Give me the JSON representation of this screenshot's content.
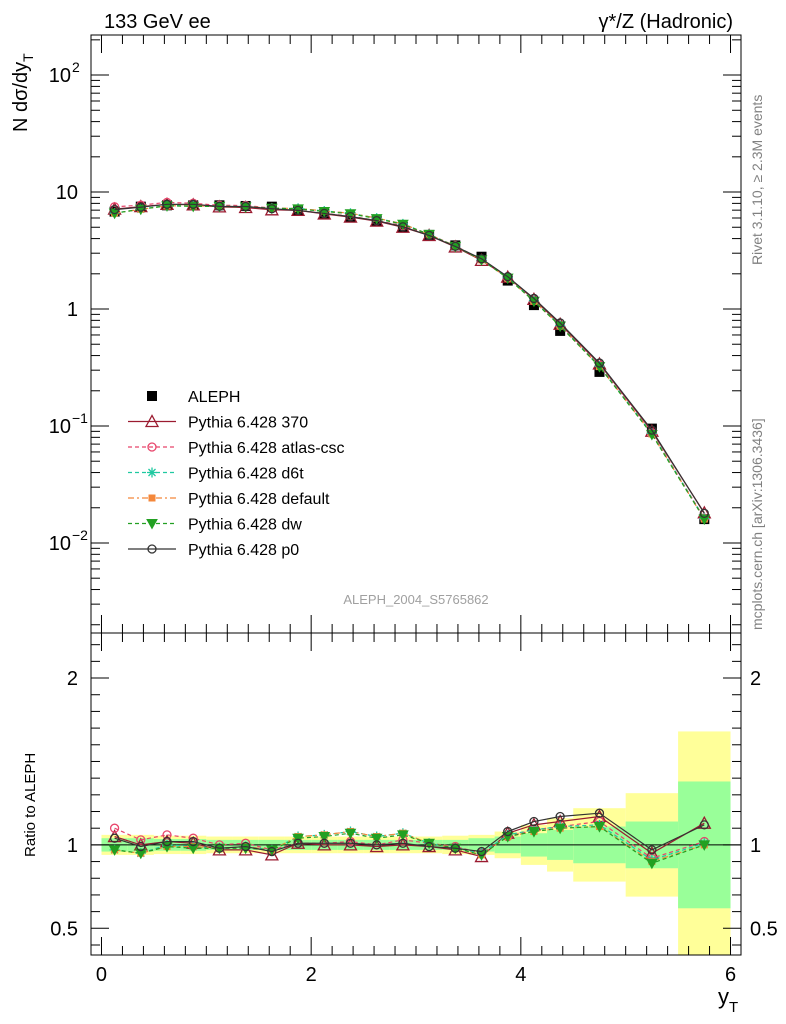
{
  "header": {
    "left": "133 GeV ee",
    "right": "γ*/Z (Hadronic)"
  },
  "side_labels": {
    "rivet": "Rivet 3.1.10, ≥ 2.3M events",
    "mcplots": "mcplots.cern.ch [arXiv:1306.3436]"
  },
  "watermark": "ALEPH_2004_S5765862",
  "chart_data": {
    "type": "line",
    "xlabel": "y",
    "xlabel_sub": "T",
    "ylabel_main": "N dσ/dy",
    "ylabel_main_sub": "T",
    "ylabel_ratio": "Ratio to ALEPH",
    "xlim": [
      -0.1,
      6.1
    ],
    "ylim_main": [
      0.0017,
      220
    ],
    "ylim_ratio": [
      0.34,
      2.27
    ],
    "log_y_main": true,
    "x_ticks": [
      "0",
      "2",
      "4",
      "6"
    ],
    "x_tick_values": [
      0,
      2,
      4,
      6
    ],
    "main_y_ticks": [
      {
        "v": 100,
        "base": "10",
        "exp": "2"
      },
      {
        "v": 10,
        "base": "10",
        "exp": ""
      },
      {
        "v": 1,
        "base": "1",
        "exp": ""
      },
      {
        "v": 0.1,
        "base": "10",
        "exp": "−1"
      },
      {
        "v": 0.01,
        "base": "10",
        "exp": "−2"
      }
    ],
    "ratio_y_ticks": [
      "0.5",
      "1",
      "2"
    ],
    "ratio_y_tick_values": [
      0.5,
      1,
      2
    ],
    "x": [
      0.125,
      0.375,
      0.625,
      0.875,
      1.125,
      1.375,
      1.625,
      1.875,
      2.125,
      2.375,
      2.625,
      2.875,
      3.125,
      3.375,
      3.625,
      3.875,
      4.125,
      4.375,
      4.75,
      5.25,
      5.75
    ],
    "bin_edges": [
      0,
      0.25,
      0.5,
      0.75,
      1.0,
      1.25,
      1.5,
      1.75,
      2.0,
      2.25,
      2.5,
      2.75,
      3.0,
      3.25,
      3.5,
      3.75,
      4.0,
      4.25,
      4.5,
      5.0,
      5.5,
      6.0
    ],
    "data": {
      "name": "ALEPH",
      "values": [
        6.8,
        7.5,
        7.7,
        7.7,
        7.7,
        7.6,
        7.5,
        6.9,
        6.5,
        6.1,
        5.7,
        5.0,
        4.3,
        3.5,
        2.8,
        1.75,
        1.08,
        0.65,
        0.29,
        0.095,
        0.016
      ]
    },
    "band_inner": [
      0.04,
      0.04,
      0.035,
      0.035,
      0.03,
      0.03,
      0.03,
      0.03,
      0.03,
      0.03,
      0.03,
      0.03,
      0.03,
      0.03,
      0.04,
      0.05,
      0.07,
      0.09,
      0.11,
      0.14,
      0.38
    ],
    "band_outer": [
      0.06,
      0.06,
      0.055,
      0.055,
      0.05,
      0.05,
      0.05,
      0.05,
      0.05,
      0.05,
      0.05,
      0.05,
      0.05,
      0.055,
      0.06,
      0.08,
      0.12,
      0.16,
      0.22,
      0.31,
      0.68
    ],
    "series": [
      {
        "name": "Pythia 6.428 370",
        "color": "#9b1b30",
        "dash": "",
        "marker": "triangle",
        "ratio": [
          1.05,
          1.0,
          1.02,
          1.01,
          0.97,
          0.97,
          0.94,
          1.01,
          1.0,
          1.0,
          0.99,
          1.0,
          0.99,
          0.97,
          0.93,
          1.07,
          1.12,
          1.14,
          1.17,
          0.95,
          1.13
        ]
      },
      {
        "name": "Pythia 6.428 atlas-csc",
        "color": "#e8456b",
        "dash": "4,3",
        "marker": "circle-open",
        "ratio": [
          1.1,
          1.03,
          1.06,
          1.04,
          1.0,
          1.01,
          0.97,
          1.01,
          1.01,
          1.02,
          1.0,
          1.03,
          1.01,
          0.99,
          0.95,
          1.05,
          1.09,
          1.11,
          1.14,
          0.92,
          1.02
        ]
      },
      {
        "name": "Pythia 6.428 d6t",
        "color": "#1fc9a1",
        "dash": "4,3",
        "marker": "star",
        "ratio": [
          0.97,
          0.95,
          1.0,
          0.99,
          0.98,
          0.99,
          0.97,
          1.05,
          1.06,
          1.08,
          1.05,
          1.07,
          1.01,
          0.98,
          0.95,
          1.06,
          1.09,
          1.11,
          1.12,
          0.91,
          1.01
        ]
      },
      {
        "name": "Pythia 6.428 default",
        "color": "#f4873a",
        "dash": "6,3,2,3",
        "marker": "square",
        "ratio": [
          0.97,
          0.95,
          0.99,
          0.99,
          0.98,
          0.99,
          0.97,
          1.05,
          1.06,
          1.08,
          1.05,
          1.07,
          1.01,
          0.98,
          0.94,
          1.05,
          1.08,
          1.1,
          1.11,
          0.9,
          1.0
        ]
      },
      {
        "name": "Pythia 6.428 dw",
        "color": "#22a022",
        "dash": "4,3",
        "marker": "triangle-down",
        "ratio": [
          0.97,
          0.95,
          0.99,
          0.98,
          0.98,
          0.98,
          0.97,
          1.04,
          1.05,
          1.07,
          1.04,
          1.06,
          1.01,
          0.98,
          0.94,
          1.05,
          1.08,
          1.1,
          1.11,
          0.89,
          1.0
        ]
      },
      {
        "name": "Pythia 6.428 p0",
        "color": "#333333",
        "dash": "",
        "marker": "circle-open",
        "ratio": [
          1.04,
          0.99,
          1.02,
          1.02,
          0.98,
          0.99,
          0.96,
          1.01,
          1.01,
          1.01,
          1.0,
          1.01,
          0.99,
          0.98,
          0.96,
          1.08,
          1.14,
          1.17,
          1.19,
          0.97,
          1.12
        ]
      }
    ]
  }
}
